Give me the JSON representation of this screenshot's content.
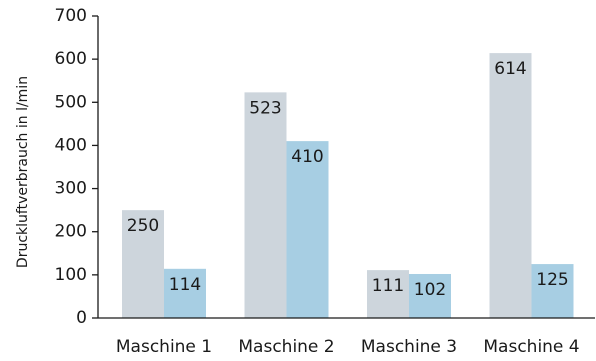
{
  "chart_data": {
    "type": "bar",
    "title": "",
    "xlabel": "",
    "ylabel": "Druckluftverbrauch in l/min",
    "ylim": [
      0,
      700
    ],
    "yticks": [
      0,
      100,
      200,
      300,
      400,
      500,
      600,
      700
    ],
    "grid": false,
    "categories": [
      "Maschine 1",
      "Maschine 2",
      "Maschine 3",
      "Maschine 4"
    ],
    "series": [
      {
        "values": [
          250,
          523,
          111,
          614
        ],
        "color": "#cdd5dc"
      },
      {
        "values": [
          114,
          410,
          102,
          125
        ],
        "color": "#a7cee3"
      }
    ],
    "data_labels": true
  }
}
